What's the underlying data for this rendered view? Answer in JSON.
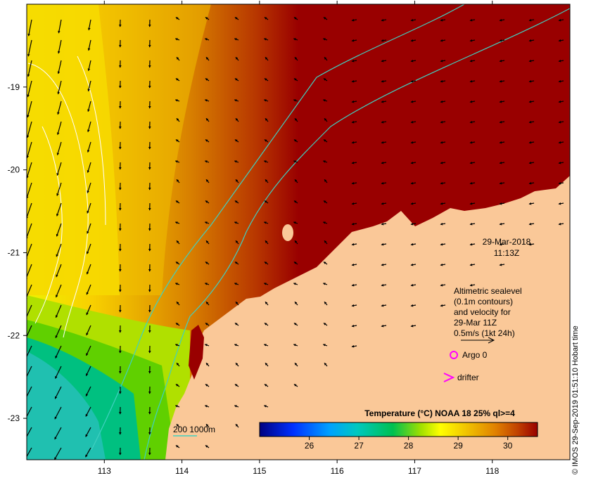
{
  "map": {
    "x_ticks": [
      {
        "lon": 113,
        "label": "113"
      },
      {
        "lon": 114,
        "label": "114"
      },
      {
        "lon": 115,
        "label": "115"
      },
      {
        "lon": 116,
        "label": "116"
      },
      {
        "lon": 117,
        "label": "117"
      },
      {
        "lon": 118,
        "label": "118"
      }
    ],
    "y_ticks": [
      {
        "lat": -19,
        "label": "-19"
      },
      {
        "lat": -20,
        "label": "-20"
      },
      {
        "lat": -21,
        "label": "-21"
      },
      {
        "lat": -22,
        "label": "-22"
      },
      {
        "lat": -23,
        "label": "-23"
      }
    ],
    "lon_range": [
      112.0,
      119.0
    ],
    "lat_range": [
      -23.5,
      -18.0
    ]
  },
  "timestamp": {
    "date": "29-Mar-2018",
    "time": "11:13Z"
  },
  "velocity_note": {
    "lines": [
      "Altimetric sealevel",
      "(0.1m contours)",
      "and velocity for",
      "29-Mar 11Z",
      "0.5m/s (1kt 24h)"
    ]
  },
  "markers": {
    "argo_label": "Argo 0",
    "drifter_label": "drifter",
    "argo_color": "#ff00ff",
    "drifter_color": "#ff00ff"
  },
  "bathymetry_legend": {
    "label": "200  1000m",
    "color": "#40d0c0"
  },
  "colorbar": {
    "title": "Temperature (°C) NOAA 18 25% ql>=4",
    "min": 25.0,
    "max": 30.6,
    "ticks": [
      "26",
      "27",
      "28",
      "29",
      "30"
    ],
    "tick_values": [
      26,
      27,
      28,
      29,
      30
    ],
    "colors": [
      "#000080",
      "#0000ff",
      "#0080ff",
      "#00c0c0",
      "#00d070",
      "#a0e000",
      "#ffff00",
      "#f0c000",
      "#e08000",
      "#c04000",
      "#990000"
    ]
  },
  "credit": "© IMOS 29-Sep-2019 01:51:10 Hobart time",
  "colors": {
    "land": "#fac898",
    "ocean_hot": "#990000",
    "coast_current": "#40d0c0"
  }
}
